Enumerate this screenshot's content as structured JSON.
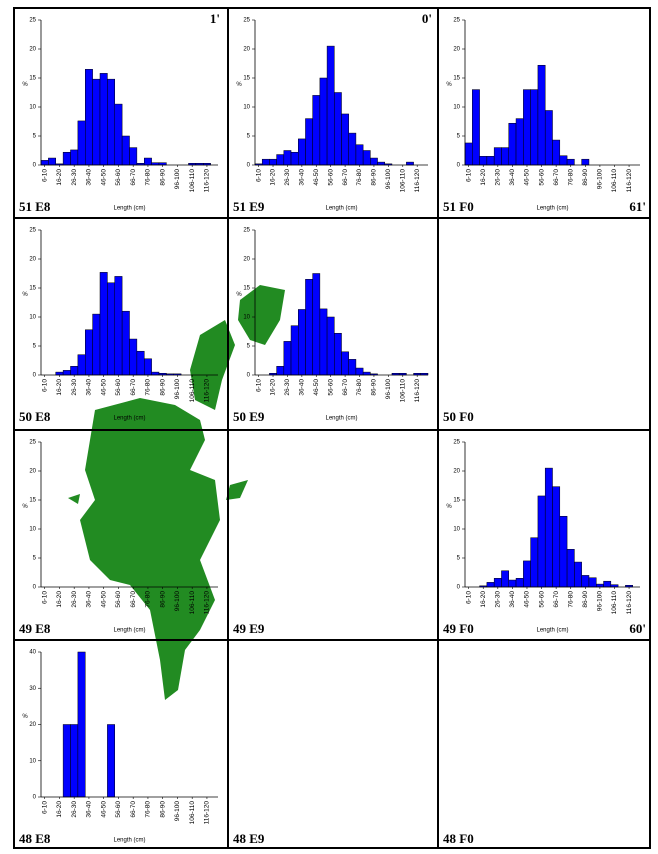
{
  "cells": [
    "51 E8",
    "51 E9",
    "51 F0",
    "50 E8",
    "50 E9",
    "50 F0",
    "49 E8",
    "49 E9",
    "49 F0",
    "48 E8",
    "48 E9",
    "48 F0"
  ],
  "coordinates": [
    "1'",
    "0'",
    "61'",
    "60'"
  ],
  "chart_data": [
    {
      "type": "bar",
      "color": "#0000ff",
      "ylabel": "%",
      "xlabel": "Length (cm)",
      "ylim": [
        0,
        25
      ],
      "yticks": [
        0,
        5,
        10,
        15,
        20,
        25
      ],
      "categories": [
        "6-10",
        null,
        "16-20",
        null,
        "26-30",
        null,
        "36-40",
        null,
        "46-50",
        null,
        "56-60",
        null,
        "66-70",
        null,
        "76-80",
        null,
        "86-90",
        null,
        "96-100",
        null,
        "106-110",
        null,
        "116-120",
        null
      ],
      "values": [
        0.8,
        1.2,
        0.2,
        2.2,
        2.6,
        7.6,
        16.5,
        14.8,
        15.8,
        14.8,
        10.5,
        5,
        3,
        0.3,
        1.2,
        0.4,
        0.4,
        0,
        0,
        0,
        0.3,
        0.3,
        0.3,
        0
      ]
    },
    {
      "type": "bar",
      "color": "#0000ff",
      "ylabel": "%",
      "xlabel": "Length (cm)",
      "ylim": [
        0,
        25
      ],
      "yticks": [
        0,
        5,
        10,
        15,
        20,
        25
      ],
      "categories": [
        "6-10",
        null,
        "16-20",
        null,
        "26-30",
        null,
        "36-40",
        null,
        "46-50",
        null,
        "56-60",
        null,
        "66-70",
        null,
        "76-80",
        null,
        "86-90",
        null,
        "96-100",
        null,
        "106-110",
        null,
        "116-120",
        null
      ],
      "values": [
        0.2,
        1,
        1,
        1.8,
        2.5,
        2.2,
        4.5,
        8,
        12,
        15,
        20.5,
        12.5,
        8.8,
        5.5,
        3.5,
        2.5,
        1.2,
        0.5,
        0.2,
        0,
        0,
        0.5,
        0,
        0
      ]
    },
    {
      "type": "bar",
      "color": "#0000ff",
      "ylabel": "%",
      "xlabel": "Length (cm)",
      "ylim": [
        0,
        25
      ],
      "yticks": [
        0,
        5,
        10,
        15,
        20,
        25
      ],
      "categories": [
        "6-10",
        null,
        "16-20",
        null,
        "26-30",
        null,
        "36-40",
        null,
        "46-50",
        null,
        "56-60",
        null,
        "66-70",
        null,
        "76-80",
        null,
        "86-90",
        null,
        "96-100",
        null,
        "106-110",
        null,
        "116-120",
        null
      ],
      "values": [
        3.8,
        13,
        1.5,
        1.5,
        3,
        3,
        7.2,
        8,
        13,
        13,
        17.2,
        9.4,
        4.3,
        1.6,
        1,
        0,
        1,
        0,
        0,
        0,
        0,
        0,
        0,
        0
      ]
    },
    {
      "type": "bar",
      "color": "#0000ff",
      "ylabel": "%",
      "xlabel": "Length (cm)",
      "ylim": [
        0,
        25
      ],
      "yticks": [
        0,
        5,
        10,
        15,
        20,
        25
      ],
      "categories": [
        "6-10",
        null,
        "16-20",
        null,
        "26-30",
        null,
        "36-40",
        null,
        "46-50",
        null,
        "56-60",
        null,
        "66-70",
        null,
        "76-80",
        null,
        "86-90",
        null,
        "96-100",
        null,
        "106-110",
        null,
        "116-120",
        null
      ],
      "values": [
        0,
        0,
        0.5,
        0.8,
        1.5,
        3.5,
        7.8,
        10.5,
        17.7,
        15.9,
        17,
        11,
        6.2,
        4.1,
        2.8,
        0.5,
        0.3,
        0.2,
        0.2,
        0,
        0,
        0,
        0,
        0
      ]
    },
    {
      "type": "bar",
      "color": "#0000ff",
      "ylabel": "%",
      "xlabel": "Length (cm)",
      "ylim": [
        0,
        25
      ],
      "yticks": [
        0,
        5,
        10,
        15,
        20,
        25
      ],
      "categories": [
        "6-10",
        null,
        "16-20",
        null,
        "26-30",
        null,
        "36-40",
        null,
        "46-50",
        null,
        "56-60",
        null,
        "66-70",
        null,
        "76-80",
        null,
        "86-90",
        null,
        "96-100",
        null,
        "106-110",
        null,
        "116-120",
        null
      ],
      "values": [
        0,
        0,
        0.3,
        1.5,
        5.8,
        8.5,
        11.3,
        16.5,
        17.5,
        11.4,
        10,
        7.2,
        4,
        2.7,
        1.2,
        0.5,
        0.2,
        0,
        0,
        0.3,
        0.3,
        0,
        0.3,
        0.3
      ]
    },
    {
      "type": "bar",
      "color": "#0000ff",
      "ylabel": "%",
      "xlabel": "Length (cm)",
      "ylim": [
        0,
        25
      ],
      "yticks": [
        0,
        5,
        10,
        15,
        20,
        25
      ],
      "categories": [
        "6-10",
        null,
        "16-20",
        null,
        "26-30",
        null,
        "36-40",
        null,
        "46-50",
        null,
        "56-60",
        null,
        "66-70",
        null,
        "76-80",
        null,
        "86-90",
        null,
        "96-100",
        null,
        "106-110",
        null,
        "116-120",
        null
      ],
      "values": [
        0,
        0,
        0,
        0,
        0,
        0,
        0,
        0,
        0,
        0,
        0,
        0,
        0,
        0,
        0,
        0,
        0,
        0,
        0,
        0,
        0,
        0,
        0,
        0
      ]
    },
    {
      "type": "bar",
      "color": "#0000ff",
      "ylabel": "%",
      "xlabel": "Length (cm)",
      "ylim": [
        0,
        25
      ],
      "yticks": [
        0,
        5,
        10,
        15,
        20,
        25
      ],
      "categories": [
        "6-10",
        null,
        "16-20",
        null,
        "26-30",
        null,
        "36-40",
        null,
        "46-50",
        null,
        "56-60",
        null,
        "66-70",
        null,
        "76-80",
        null,
        "86-90",
        null,
        "96-100",
        null,
        "106-110",
        null,
        "116-120",
        null
      ],
      "values": [
        0,
        0,
        0.2,
        0.8,
        1.5,
        2.8,
        1.2,
        1.5,
        4.5,
        8.5,
        15.7,
        20.5,
        17.3,
        12.2,
        6.5,
        4.3,
        2,
        1.6,
        0.5,
        1,
        0.4,
        0,
        0.3,
        0
      ]
    },
    {
      "type": "bar",
      "color": "#0000ff",
      "ylabel": "%",
      "xlabel": "Length (cm)",
      "ylim": [
        0,
        40
      ],
      "yticks": [
        0,
        10,
        20,
        30,
        40
      ],
      "categories": [
        "6-10",
        null,
        "16-20",
        null,
        "26-30",
        null,
        "36-40",
        null,
        "46-50",
        null,
        "56-60",
        null,
        "66-70",
        null,
        "76-80",
        null,
        "86-90",
        null,
        "96-100",
        null,
        "106-110",
        null,
        "116-120",
        null
      ],
      "values": [
        0,
        0,
        0,
        20,
        20,
        40,
        0,
        0,
        0,
        20,
        0,
        0,
        0,
        0,
        0,
        0,
        0,
        0,
        0,
        0,
        0,
        0,
        0,
        0
      ]
    }
  ]
}
